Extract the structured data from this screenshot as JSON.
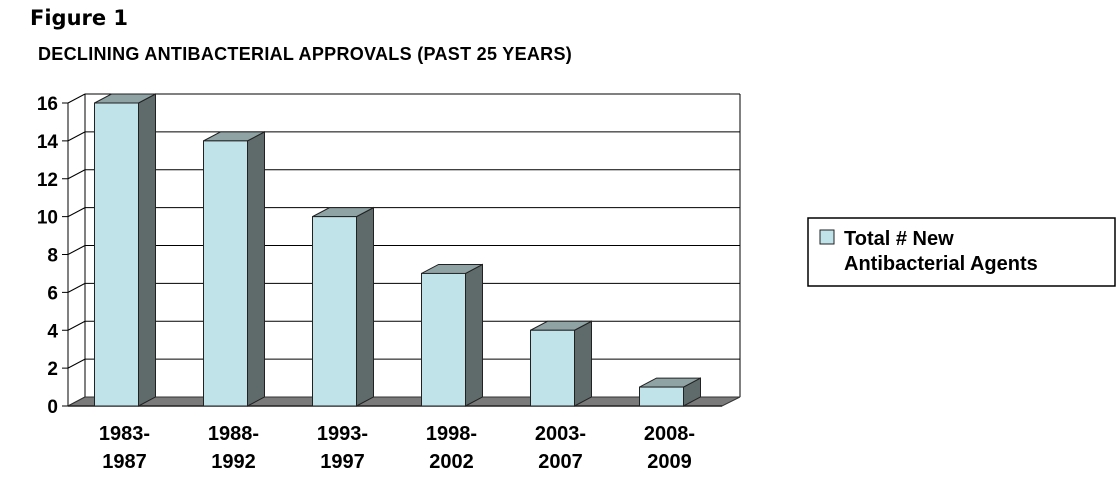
{
  "figure_label": "Figure 1",
  "chart_data": {
    "type": "bar",
    "title": "DECLINING ANTIBACTERIAL APPROVALS  (PAST 25 YEARS)",
    "categories": [
      [
        "1983-",
        "1987"
      ],
      [
        "1988-",
        "1992"
      ],
      [
        "1993-",
        "1997"
      ],
      [
        "1998-",
        "2002"
      ],
      [
        "2003-",
        "2007"
      ],
      [
        "2008-",
        "2009"
      ]
    ],
    "series": [
      {
        "name": "Total # New Antibacterial Agents",
        "legend_lines": [
          "Total # New",
          "Antibacterial Agents"
        ],
        "values": [
          16,
          14,
          10,
          7,
          4,
          1
        ]
      }
    ],
    "ylim": [
      0,
      16
    ],
    "yticks": [
      0,
      2,
      4,
      6,
      8,
      10,
      12,
      14,
      16
    ],
    "xlabel": "",
    "ylabel": "",
    "grid": true,
    "style": "3d",
    "legend_position": "right",
    "colors": {
      "bar_front": "#bfe3e8",
      "bar_side": "#5f6b6b",
      "bar_top": "#8fa3a5",
      "floor": "#7a7a7a",
      "grid": "#000000"
    }
  }
}
